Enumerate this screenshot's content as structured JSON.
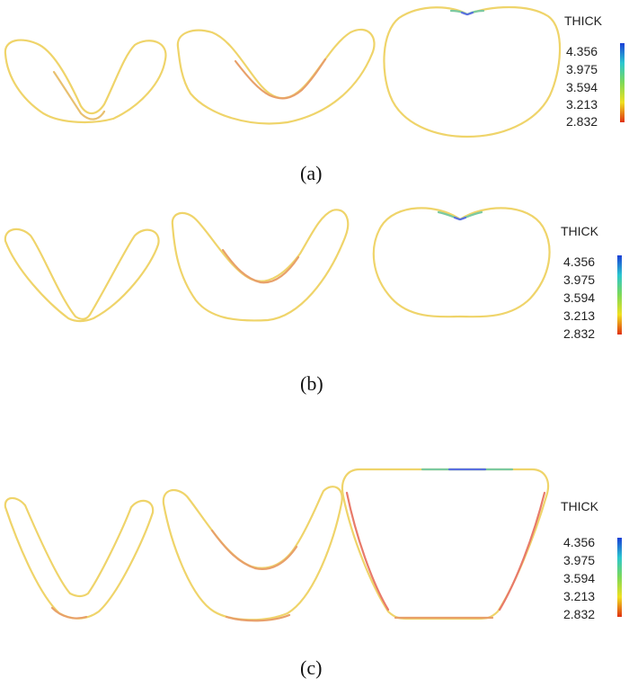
{
  "colorbar": {
    "title": "THICK",
    "ticks": [
      "4.356",
      "3.975",
      "3.594",
      "3.213",
      "2.832"
    ],
    "colors": [
      "#1a3fd6",
      "#2bc7d0",
      "#7ed957",
      "#f0e020",
      "#e03010"
    ]
  },
  "panels": [
    {
      "caption": "(a)"
    },
    {
      "caption": "(b)"
    },
    {
      "caption": "(c)"
    }
  ],
  "colors": {
    "base_outline": "#efd46a",
    "thin_outline": "#e8a06a",
    "thick_accent": "#7bc9a0",
    "max_accent": "#5a6fe0"
  }
}
